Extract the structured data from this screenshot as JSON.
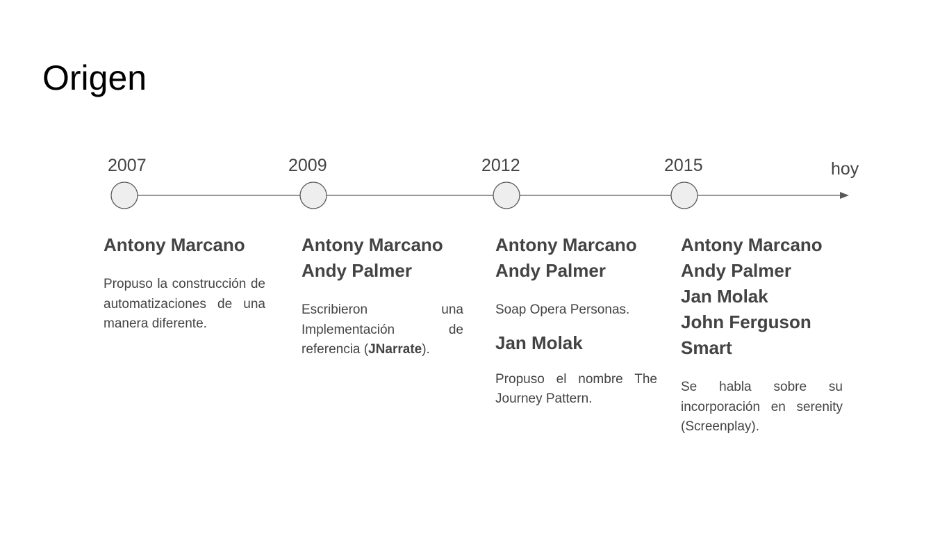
{
  "slide": {
    "title": "Origen"
  },
  "timeline": {
    "end_label": "hoy",
    "line_color": "#595959",
    "node_fill": "#eeeeee",
    "node_stroke": "#595959",
    "milestones": [
      {
        "year": "2007",
        "names": [
          "Antony Marcano"
        ],
        "description": "Propuso la construcción de automatizaciones de una manera diferente."
      },
      {
        "year": "2009",
        "names": [
          "Antony Marcano",
          "Andy Palmer"
        ],
        "description_before": "Escribieron una Implementación de referencia (",
        "description_bold": "JNarrate",
        "description_after": ")."
      },
      {
        "year": "2012",
        "names": [
          "Antony Marcano",
          "Andy Palmer"
        ],
        "description": "Soap Opera Personas.",
        "sub_name": "Jan Molak",
        "sub_description": "Propuso el nombre The Journey Pattern."
      },
      {
        "year": "2015",
        "names": [
          "Antony Marcano",
          "Andy Palmer",
          "Jan Molak",
          "John Ferguson Smart"
        ],
        "description": "Se habla sobre su incorporación en serenity (Screenplay)."
      }
    ]
  }
}
